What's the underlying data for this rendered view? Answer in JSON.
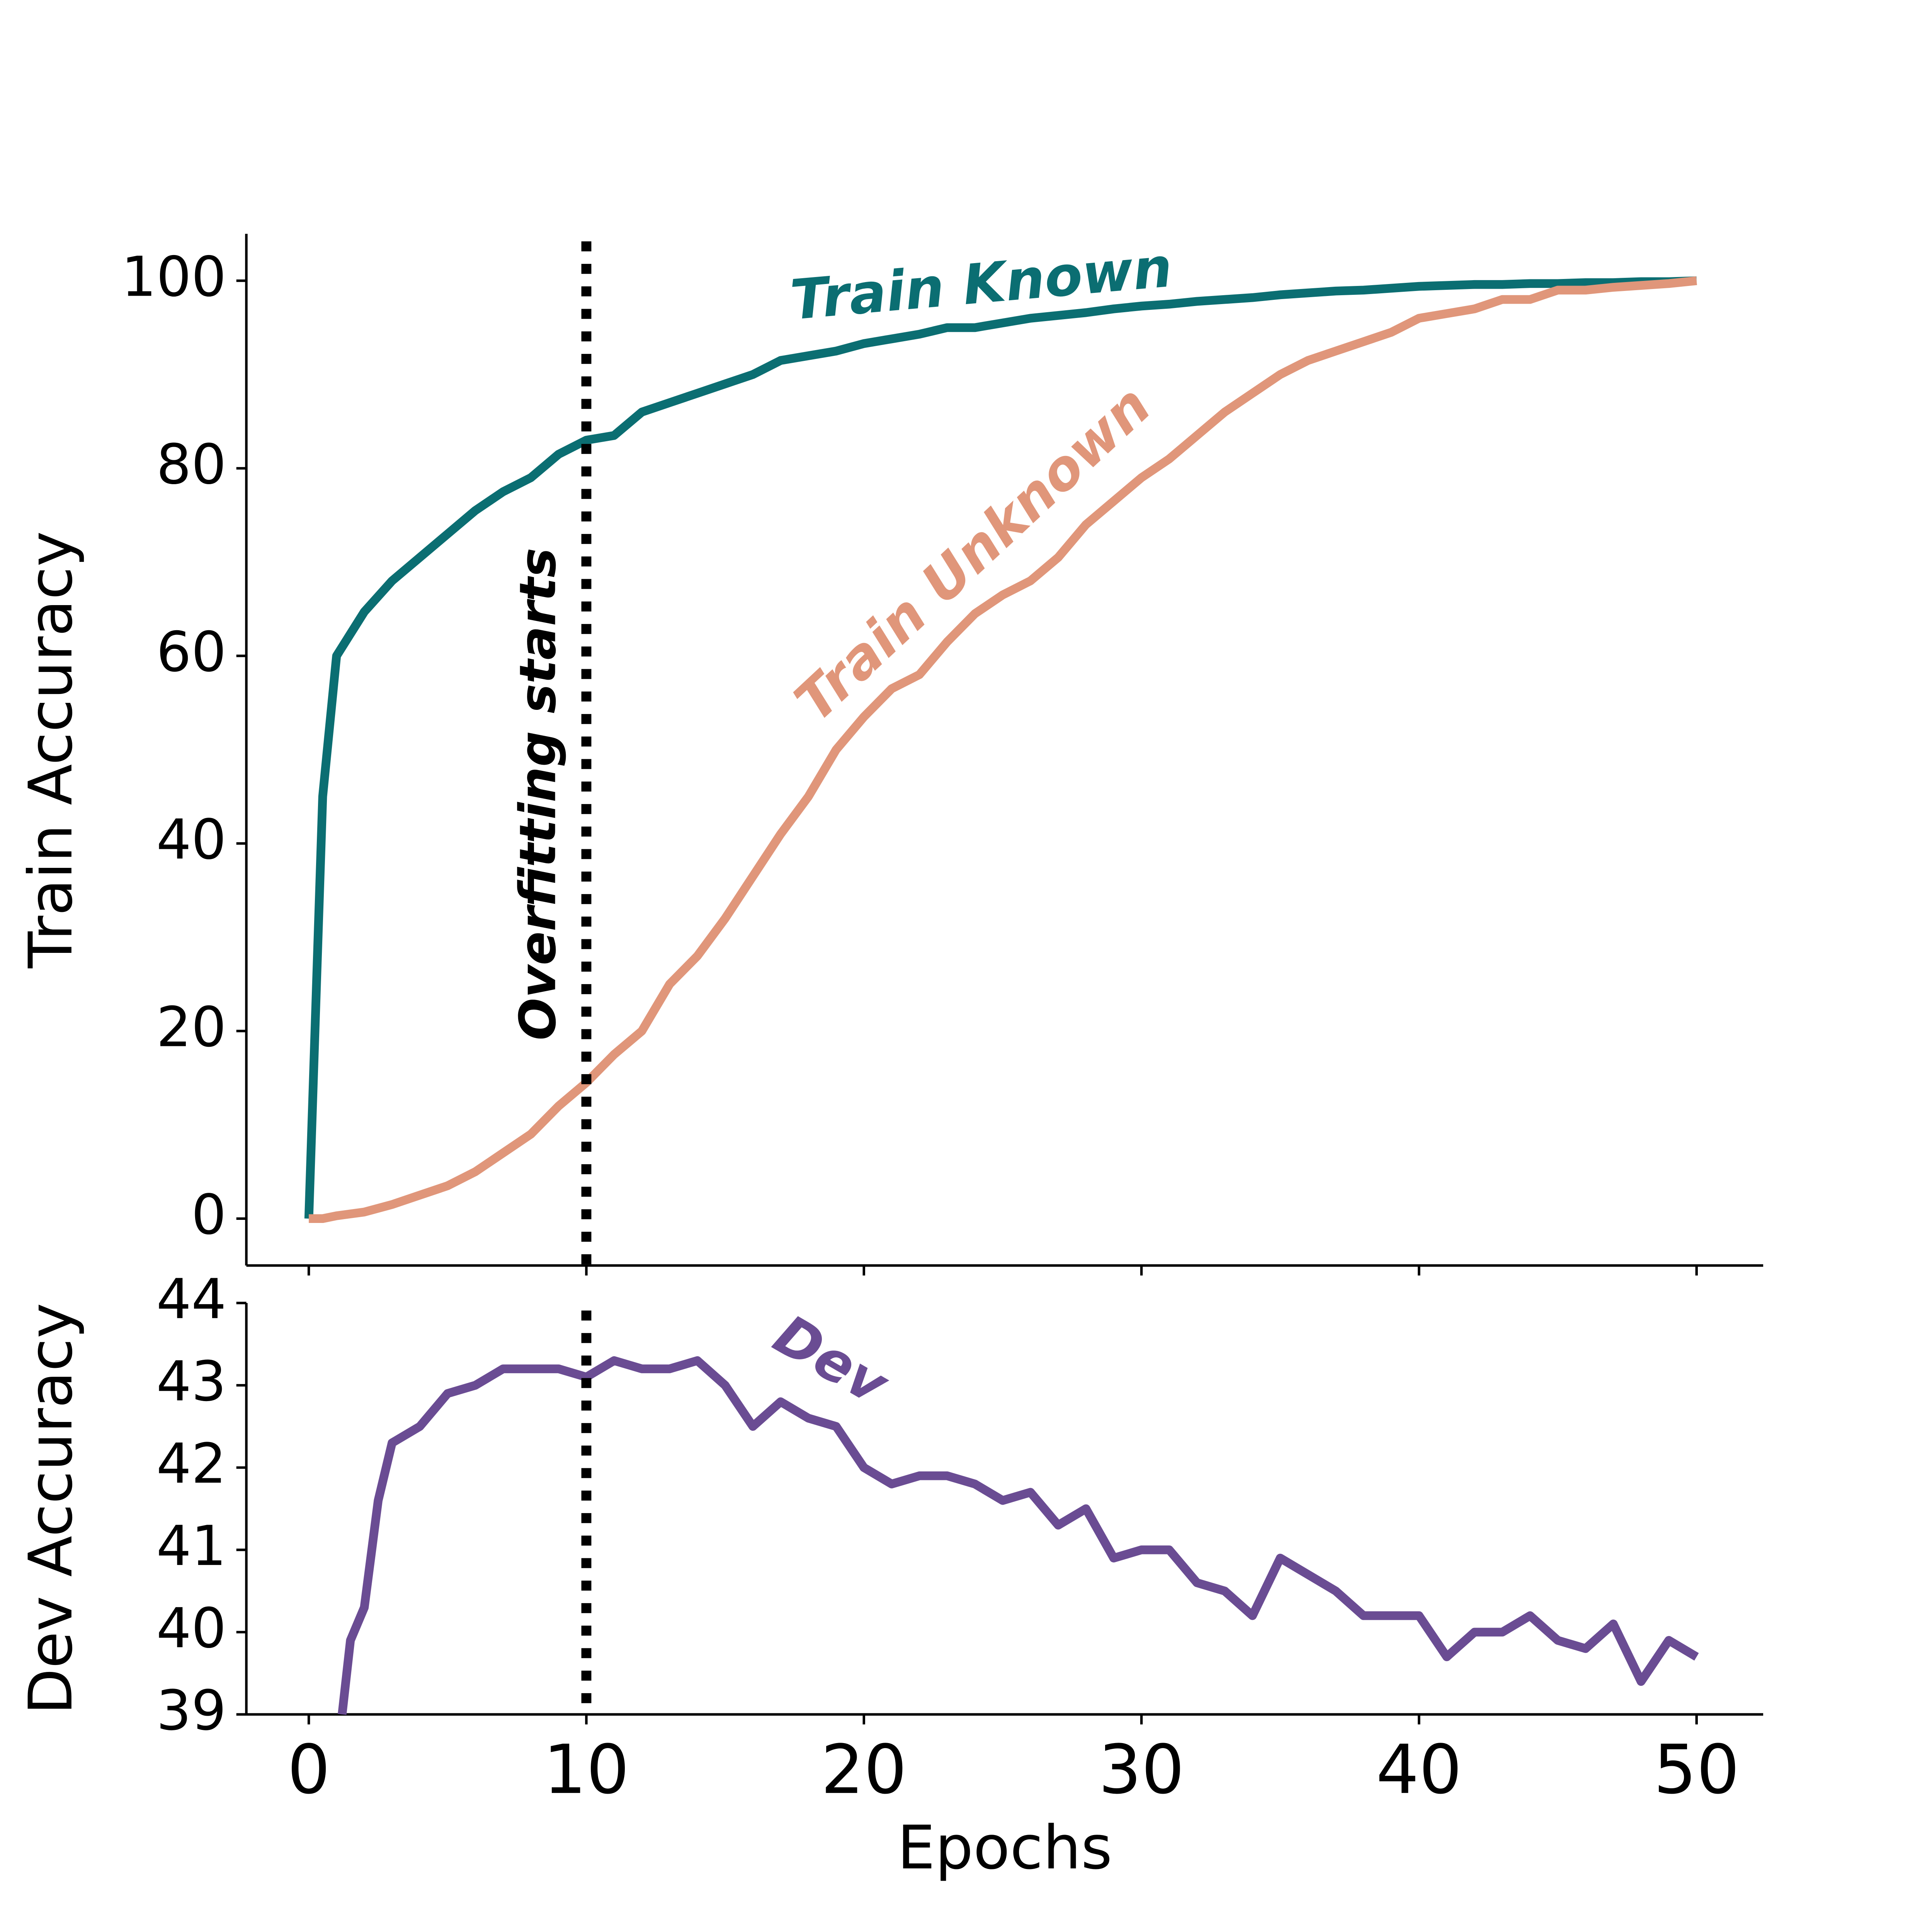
{
  "chart_data": [
    {
      "type": "line",
      "ylabel": "Train Accuracy",
      "annotation": "Overfitting starts",
      "vline_x": 10,
      "x": [
        0,
        0.5,
        1,
        2,
        3,
        4,
        5,
        6,
        7,
        8,
        9,
        10,
        11,
        12,
        13,
        14,
        15,
        16,
        17,
        18,
        19,
        20,
        21,
        22,
        23,
        24,
        25,
        26,
        27,
        28,
        29,
        30,
        31,
        32,
        33,
        34,
        35,
        36,
        37,
        38,
        39,
        40,
        41,
        42,
        43,
        44,
        45,
        46,
        47,
        48,
        49,
        50
      ],
      "series": [
        {
          "name": "Train Known",
          "color": "#0b6e72",
          "values": [
            0,
            45,
            60,
            64.7,
            68,
            70.5,
            73,
            75.5,
            77.5,
            79,
            81.5,
            83,
            83.5,
            86,
            87,
            88,
            89,
            90,
            91.5,
            92,
            92.5,
            93.3,
            93.8,
            94.3,
            95,
            95,
            95.5,
            96,
            96.3,
            96.6,
            97,
            97.3,
            97.5,
            97.8,
            98,
            98.2,
            98.5,
            98.7,
            98.9,
            99,
            99.2,
            99.4,
            99.5,
            99.6,
            99.6,
            99.7,
            99.7,
            99.8,
            99.8,
            99.9,
            99.9,
            100
          ]
        },
        {
          "name": "Train Unknown",
          "color": "#e0967a",
          "values": [
            0,
            0,
            0.3,
            0.7,
            1.5,
            2.5,
            3.5,
            5,
            7,
            9,
            12,
            14.5,
            17.5,
            20,
            25,
            28,
            32,
            36.5,
            41,
            45,
            50,
            53.5,
            56.5,
            58,
            61.5,
            64.5,
            66.5,
            68,
            70.5,
            74,
            76.5,
            79,
            81,
            83.5,
            86,
            88,
            90,
            91.5,
            92.5,
            93.5,
            94.5,
            96,
            96.5,
            97,
            98,
            98,
            99,
            99,
            99.3,
            99.5,
            99.7,
            100
          ]
        }
      ],
      "xlim": [
        -2.25,
        52.4
      ],
      "xticks": [
        0,
        10,
        20,
        30,
        40,
        50
      ],
      "show_xtick_labels": false,
      "ylim": [
        -5,
        105
      ],
      "yticks": [
        0,
        20,
        40,
        60,
        80,
        100
      ]
    },
    {
      "type": "line",
      "ylabel": "Dev Accuracy",
      "xlabel": "Epochs",
      "vline_x": 10,
      "x": [
        1.2,
        1.5,
        2,
        2.5,
        3,
        4,
        5,
        6,
        7,
        8,
        9,
        10,
        11,
        12,
        13,
        14,
        15,
        16,
        17,
        18,
        19,
        20,
        21,
        22,
        23,
        24,
        25,
        26,
        27,
        28,
        29,
        30,
        31,
        32,
        33,
        34,
        35,
        36,
        37,
        38,
        39,
        40,
        41,
        42,
        43,
        44,
        45,
        46,
        47,
        48,
        49,
        50
      ],
      "series": [
        {
          "name": "Dev",
          "color": "#6a4c93",
          "values": [
            39,
            39.9,
            40.3,
            41.6,
            42.3,
            42.5,
            42.9,
            43,
            43.2,
            43.2,
            43.2,
            43.1,
            43.3,
            43.2,
            43.2,
            43.3,
            43,
            42.5,
            42.8,
            42.6,
            42.5,
            42,
            41.8,
            41.9,
            41.9,
            41.8,
            41.6,
            41.7,
            41.3,
            41.5,
            40.9,
            41.0,
            41.0,
            40.6,
            40.5,
            40.2,
            40.9,
            40.7,
            40.5,
            40.2,
            40.2,
            40.2,
            39.7,
            40,
            40,
            40.2,
            39.9,
            39.8,
            40.1,
            39.4,
            39.9,
            39.7
          ]
        }
      ],
      "xlim": [
        -2.25,
        52.4
      ],
      "xticks": [
        0,
        10,
        20,
        30,
        40,
        50
      ],
      "show_xtick_labels": true,
      "ylim": [
        39,
        44
      ],
      "yticks": [
        39,
        40,
        41,
        42,
        43,
        44
      ]
    }
  ]
}
